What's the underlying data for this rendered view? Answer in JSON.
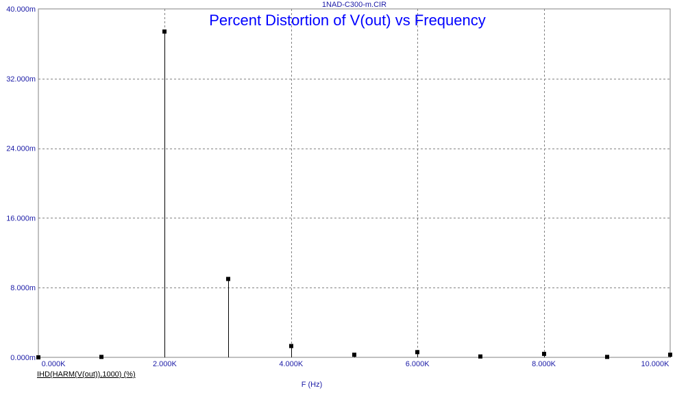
{
  "chart_data": {
    "type": "stem",
    "file_name": "1NAD-C300-m.CIR",
    "title": "Percent Distortion of V(out) vs Frequency",
    "xlabel": "F (Hz)",
    "series_label": "IHD(HARM(V(out)),1000) (%)",
    "xlim": [
      0,
      10000
    ],
    "ylim": [
      0,
      0.04
    ],
    "x_ticks": [
      0,
      2000,
      4000,
      6000,
      8000,
      10000
    ],
    "x_tick_labels": [
      "0.000K",
      "2.000K",
      "4.000K",
      "6.000K",
      "8.000K",
      "10.000K"
    ],
    "y_ticks": [
      0,
      0.008,
      0.016,
      0.024,
      0.032,
      0.04
    ],
    "y_tick_labels": [
      "0.000m",
      "8.000m",
      "16.000m",
      "24.000m",
      "32.000m",
      "40.000m"
    ],
    "grid": true,
    "series": [
      {
        "name": "IHD(HARM(V(out)),1000) (%)",
        "color": "#000000",
        "x": [
          0,
          1000,
          2000,
          3000,
          4000,
          5000,
          6000,
          7000,
          8000,
          9000,
          10000
        ],
        "y": [
          0,
          5e-05,
          0.0374,
          0.009,
          0.0013,
          0.0003,
          0.0006,
          0.0001,
          0.0004,
          5e-05,
          0.0003
        ]
      }
    ]
  },
  "colors": {
    "axis_text": "#1a1aa6",
    "title": "#0000ff",
    "grid": "#808080",
    "plot_border": "#808080",
    "data": "#000000"
  }
}
